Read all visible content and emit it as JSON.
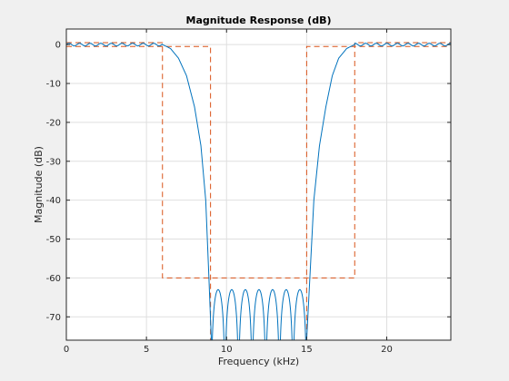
{
  "chart_data": {
    "type": "line",
    "title": "Magnitude Response (dB)",
    "xlabel": "Frequency (kHz)",
    "ylabel": "Magnitude (dB)",
    "xlim": [
      0,
      24
    ],
    "ylim": [
      -76,
      4
    ],
    "grid": true,
    "legend": "none",
    "x_ticks": [
      0,
      5,
      10,
      15,
      20
    ],
    "y_ticks": [
      0,
      -10,
      -20,
      -30,
      -40,
      -50,
      -60,
      -70
    ],
    "colors": {
      "response": "#0072bd",
      "mask": "#d95319",
      "axes": "#262626",
      "grid": "#dfdfdf",
      "figure_bg": "#f0f0f0",
      "axes_bg": "#ffffff"
    },
    "series": [
      {
        "style": "solid",
        "color": "#0072bd",
        "description_points": [
          [
            0,
            0
          ],
          [
            6,
            0
          ],
          [
            6.5,
            -1
          ],
          [
            7,
            -3.5
          ],
          [
            7.5,
            -8
          ],
          [
            8,
            -16
          ],
          [
            8.4,
            -26
          ],
          [
            8.7,
            -40
          ],
          [
            8.9,
            -60
          ],
          [
            9.05,
            -76
          ],
          [
            15.0,
            -76
          ],
          [
            15.2,
            -60
          ],
          [
            15.45,
            -40
          ],
          [
            15.8,
            -26
          ],
          [
            16.2,
            -16
          ],
          [
            16.6,
            -8
          ],
          [
            17.0,
            -3.5
          ],
          [
            17.5,
            -1
          ],
          [
            18,
            0
          ],
          [
            24,
            0
          ]
        ],
        "stopband_lobe_peak_db": -63
      },
      {
        "style": "dashed",
        "color": "#d95319",
        "upper_mask": [
          [
            0,
            0.5
          ],
          [
            6,
            0.5
          ],
          [
            6,
            -60
          ],
          [
            18,
            -60
          ],
          [
            18,
            0.5
          ],
          [
            24,
            0.5
          ]
        ],
        "lower_mask": [
          [
            0,
            -0.5
          ],
          [
            9,
            -0.5
          ],
          [
            9,
            -76
          ],
          [
            15,
            -76
          ],
          [
            15,
            -0.5
          ],
          [
            24,
            -0.5
          ]
        ]
      }
    ]
  }
}
